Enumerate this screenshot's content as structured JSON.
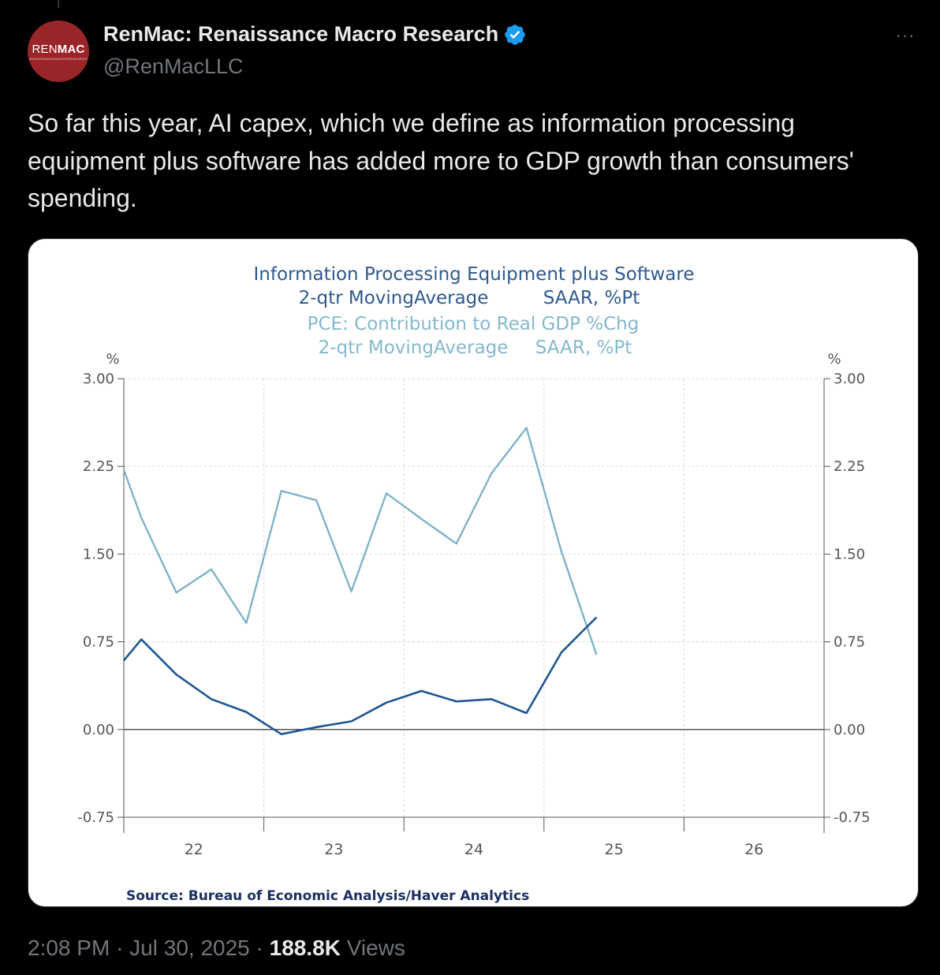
{
  "author": {
    "display_name": "RenMac: Renaissance Macro Research",
    "handle": "@RenMacLLC",
    "avatar_text_light": "REN",
    "avatar_text_bold": "MAC",
    "avatar_subtext": "RENAISSANCEMACRORESEARCH"
  },
  "more_icon": "ellipsis-icon",
  "tweet": {
    "text": "So far this year, AI capex, which we define as information processing equipment plus software has added more to GDP growth than consumers' spending."
  },
  "footer": {
    "time": "2:08 PM",
    "date": "Jul 30, 2025",
    "separator": "·",
    "views_count": "188.8K",
    "views_label": "Views"
  },
  "chart_data": {
    "type": "line",
    "title_lines": [
      "Information Processing Equipment plus Software",
      "2-qtr MovingAverage",
      "SAAR, %Pt",
      "PCE: Contribution to Real GDP %Chg",
      "2-qtr MovingAverage",
      "SAAR, %Pt"
    ],
    "y_unit_left": "%",
    "y_unit_right": "%",
    "ylim": [
      -0.75,
      3.0
    ],
    "y_ticks": [
      "3.00",
      "2.25",
      "1.50",
      "0.75",
      "0.00",
      "-0.75"
    ],
    "y_tick_values": [
      3.0,
      2.25,
      1.5,
      0.75,
      0.0,
      -0.75
    ],
    "x_tick_labels": [
      "22",
      "23",
      "24",
      "25",
      "26"
    ],
    "x_tick_positions": [
      22.0,
      23.0,
      24.0,
      25.0,
      26.0
    ],
    "xlim": [
      21.5,
      26.5
    ],
    "x_year_boundaries": [
      21.5,
      22.5,
      23.5,
      24.5,
      25.5,
      26.5
    ],
    "x": [
      21.5,
      21.625,
      21.875,
      22.125,
      22.375,
      22.625,
      22.875,
      23.125,
      23.375,
      23.625,
      23.875,
      24.125,
      24.375,
      24.625,
      24.875
    ],
    "series": [
      {
        "name": "Information Processing Equipment plus Software",
        "color": "#1f5591",
        "values": [
          0.59,
          0.77,
          0.47,
          0.26,
          0.15,
          -0.04,
          0.02,
          0.07,
          0.23,
          0.33,
          0.24,
          0.26,
          0.14,
          0.66,
          0.96
        ]
      },
      {
        "name": "PCE: Contribution to Real GDP %Chg",
        "color": "#7fb3c8",
        "values": [
          2.22,
          1.81,
          1.17,
          1.37,
          0.91,
          2.04,
          1.96,
          1.18,
          2.02,
          1.8,
          1.59,
          2.19,
          2.58,
          1.52,
          0.64
        ]
      }
    ],
    "source": "Source:  Bureau of Economic Analysis/Haver Analytics",
    "grid": true,
    "zero_line": true
  }
}
